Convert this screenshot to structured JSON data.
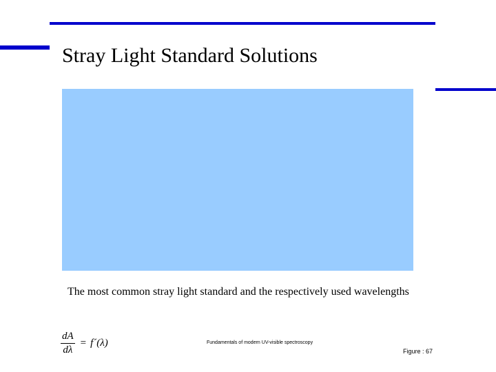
{
  "slide": {
    "title": "Stray Light Standard Solutions",
    "caption": "The most common stray light standard and the respectively used wavelengths",
    "formula": {
      "numerator": "dA",
      "denominator": "dλ",
      "equals": "=",
      "rhs": "f´(λ)"
    },
    "source_note": "Fundamentals of modern UV-visible spectroscopy",
    "figure_number": "Figure : 67"
  },
  "colors": {
    "accent_rule": "#0000cc",
    "figure_placeholder": "#99ccff",
    "text": "#000000",
    "background": "#ffffff"
  }
}
